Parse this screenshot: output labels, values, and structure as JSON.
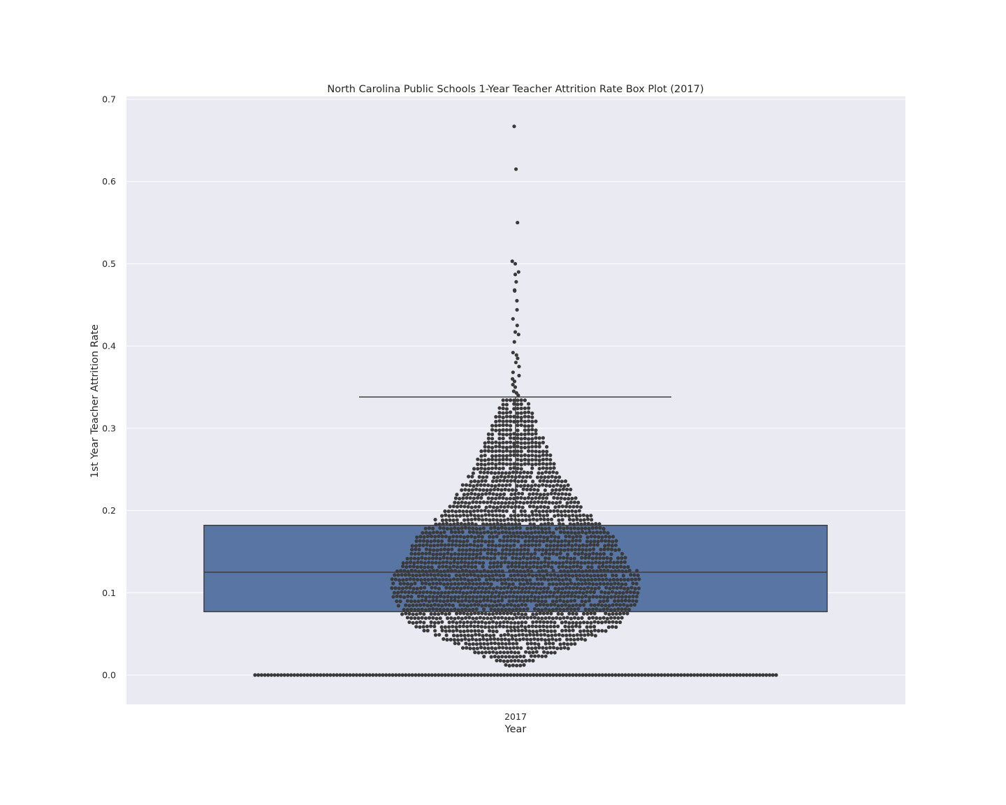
{
  "chart_data": {
    "type": "box",
    "overlay": "swarm",
    "title": "North Carolina Public Schools 1-Year Teacher Attrition Rate Box Plot (2017)",
    "xlabel": "Year",
    "ylabel": "1st Year Teacher Attrition Rate",
    "categories": [
      "2017"
    ],
    "ylim": [
      -0.035,
      0.7
    ],
    "yticks": [
      0.0,
      0.1,
      0.2,
      0.3,
      0.4,
      0.5,
      0.6,
      0.7
    ],
    "ytick_labels": [
      "0.0",
      "0.1",
      "0.2",
      "0.3",
      "0.4",
      "0.5",
      "0.6",
      "0.7"
    ],
    "grid": true,
    "box": {
      "category": "2017",
      "whisker_low": 0.0,
      "q1": 0.077,
      "median": 0.125,
      "q3": 0.182,
      "whisker_high": 0.338,
      "color": "#5975a4",
      "edge_color": "#3f3f3f"
    },
    "swarm_color": "#3a3a3a",
    "zero_value_count": 160,
    "high_points": [
      0.667,
      0.615,
      0.55,
      0.503,
      0.5,
      0.49,
      0.487,
      0.478,
      0.468,
      0.467,
      0.455,
      0.444,
      0.433,
      0.425,
      0.417,
      0.414,
      0.405,
      0.392,
      0.389,
      0.385,
      0.38,
      0.375,
      0.368,
      0.364,
      0.36,
      0.357,
      0.353,
      0.35,
      0.345,
      0.343,
      0.34
    ],
    "background_color": "#eaeaf2"
  }
}
